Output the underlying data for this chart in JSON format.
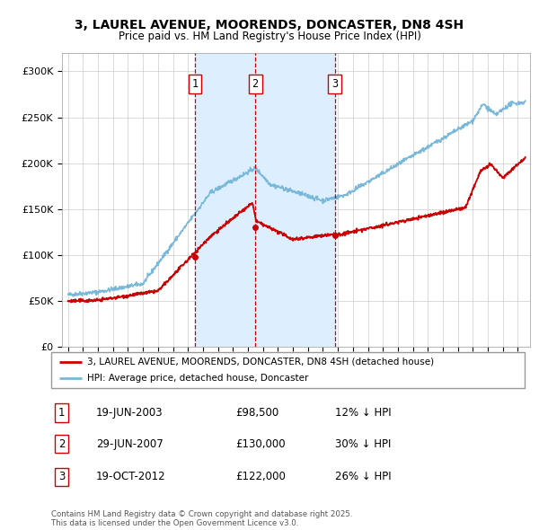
{
  "title": "3, LAUREL AVENUE, MOORENDS, DONCASTER, DN8 4SH",
  "subtitle": "Price paid vs. HM Land Registry's House Price Index (HPI)",
  "ylim": [
    0,
    320000
  ],
  "yticks": [
    0,
    50000,
    100000,
    150000,
    200000,
    250000,
    300000
  ],
  "ytick_labels": [
    "£0",
    "£50K",
    "£100K",
    "£150K",
    "£200K",
    "£250K",
    "£300K"
  ],
  "sale_dates": [
    2003.46,
    2007.49,
    2012.8
  ],
  "sale_prices": [
    98500,
    130000,
    122000
  ],
  "sale_labels": [
    "1",
    "2",
    "3"
  ],
  "sale_date_strs": [
    "19-JUN-2003",
    "29-JUN-2007",
    "19-OCT-2012"
  ],
  "sale_price_strs": [
    "£98,500",
    "£130,000",
    "£122,000"
  ],
  "sale_hpi_strs": [
    "12% ↓ HPI",
    "30% ↓ HPI",
    "26% ↓ HPI"
  ],
  "hpi_color": "#7ab8d9",
  "price_color": "#cc0000",
  "legend_price_label": "3, LAUREL AVENUE, MOORENDS, DONCASTER, DN8 4SH (detached house)",
  "legend_hpi_label": "HPI: Average price, detached house, Doncaster",
  "footnote": "Contains HM Land Registry data © Crown copyright and database right 2025.\nThis data is licensed under the Open Government Licence v3.0.",
  "plot_bg": "#ffffff",
  "vline_color": "#cc0000",
  "shade_color": "#ddeeff"
}
